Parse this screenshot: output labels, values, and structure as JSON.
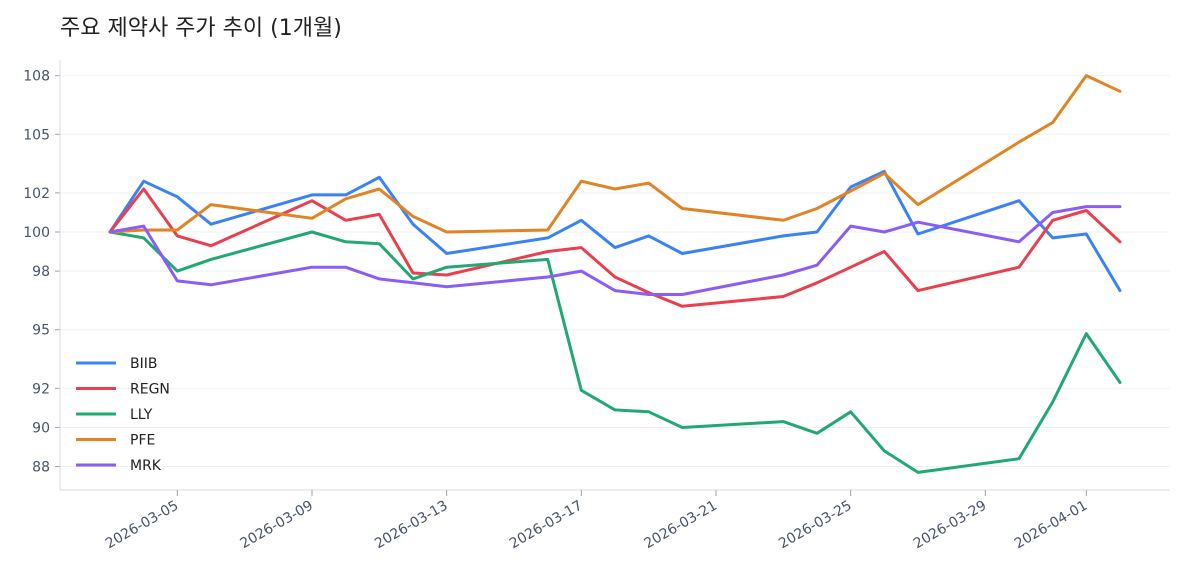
{
  "chart_data": {
    "type": "line",
    "title": "주요 제약사 주가 추이 (1개월)",
    "xlabel": "",
    "ylabel": "",
    "x": [
      "2026-03-03",
      "2026-03-04",
      "2026-03-05",
      "2026-03-06",
      "2026-03-09",
      "2026-03-10",
      "2026-03-11",
      "2026-03-12",
      "2026-03-13",
      "2026-03-16",
      "2026-03-17",
      "2026-03-18",
      "2026-03-19",
      "2026-03-20",
      "2026-03-23",
      "2026-03-24",
      "2026-03-25",
      "2026-03-26",
      "2026-03-27",
      "2026-03-30",
      "2026-03-31",
      "2026-04-01",
      "2026-04-02"
    ],
    "x_ticks": [
      "2026-03-05",
      "2026-03-09",
      "2026-03-13",
      "2026-03-17",
      "2026-03-21",
      "2026-03-25",
      "2026-03-29",
      "2026-04-01"
    ],
    "y_ticks": [
      88,
      90,
      92,
      95,
      98,
      100,
      102,
      105,
      108
    ],
    "ylim": [
      86.8,
      108.8
    ],
    "grid": "horizontal",
    "legend_position": "lower-left",
    "series": [
      {
        "name": "BIIB",
        "color": "#3b82f6",
        "values": [
          100.0,
          102.6,
          101.8,
          100.4,
          101.9,
          101.9,
          102.8,
          100.4,
          98.9,
          99.7,
          100.6,
          99.2,
          99.8,
          98.9,
          99.8,
          100.0,
          102.3,
          103.1,
          99.9,
          101.6,
          99.7,
          99.9,
          97.0
        ]
      },
      {
        "name": "REGN",
        "color": "#e8404f",
        "values": [
          100.0,
          102.2,
          99.8,
          99.3,
          101.6,
          100.6,
          100.9,
          97.9,
          97.8,
          99.0,
          99.2,
          97.7,
          96.9,
          96.2,
          96.7,
          97.4,
          98.2,
          99.0,
          97.0,
          98.2,
          100.6,
          101.1,
          99.5
        ]
      },
      {
        "name": "LLY",
        "color": "#22a874",
        "values": [
          100.0,
          99.7,
          98.0,
          98.6,
          100.0,
          99.5,
          99.4,
          97.6,
          98.2,
          98.6,
          91.9,
          90.9,
          90.8,
          90.0,
          90.3,
          89.7,
          90.8,
          88.8,
          87.7,
          88.4,
          91.3,
          94.8,
          92.3
        ]
      },
      {
        "name": "PFE",
        "color": "#e08425",
        "values": [
          100.0,
          100.1,
          100.1,
          101.4,
          100.7,
          101.7,
          102.2,
          100.8,
          100.0,
          100.1,
          102.6,
          102.2,
          102.5,
          101.2,
          100.6,
          101.2,
          102.1,
          103.0,
          101.4,
          104.6,
          105.6,
          108.0,
          107.2
        ]
      },
      {
        "name": "MRK",
        "color": "#8b5cf6",
        "values": [
          100.0,
          100.3,
          97.5,
          97.3,
          98.2,
          98.2,
          97.6,
          97.4,
          97.2,
          97.7,
          98.0,
          97.0,
          96.8,
          96.8,
          97.8,
          98.3,
          100.3,
          100.0,
          100.5,
          99.5,
          101.0,
          101.3,
          101.3
        ]
      }
    ]
  }
}
